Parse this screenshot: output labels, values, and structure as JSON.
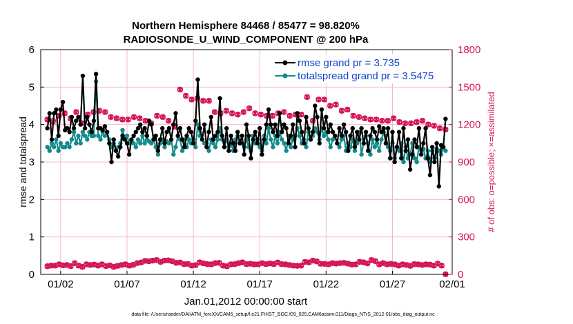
{
  "chart_data": {
    "type": "line",
    "title": [
      "Northern Hemisphere 84468 / 85477 = 98.820%",
      "RADIOSONDE_U_WIND_COMPONENT @ 200 hPa"
    ],
    "xlabel": "Jan.01,2012 00:00:00 start",
    "ylabel_left": "rmse and totalspread",
    "ylabel_right": "# of obs: o=possible; ×=assimilated",
    "footer": "data file: /Users/raeder/DAI/ATM_forcXX/CAM6_setup/f.e21.FHIST_BGC.f09_025.CAM6assim.011/Diags_NTrS_2012-01/obs_diag_output.nc",
    "ylim_left": [
      0,
      6
    ],
    "ylim_right": [
      0,
      1800
    ],
    "xlim": [
      0.5,
      31.5
    ],
    "yticks_left": [
      "0",
      "1",
      "2",
      "3",
      "4",
      "5",
      "6"
    ],
    "yticks_right": [
      "0",
      "300",
      "600",
      "900",
      "1200",
      "1500",
      "1800"
    ],
    "xticks": [
      {
        "x": 2,
        "label": "01/02"
      },
      {
        "x": 7,
        "label": "01/07"
      },
      {
        "x": 12,
        "label": "01/12"
      },
      {
        "x": 17,
        "label": "01/17"
      },
      {
        "x": 22,
        "label": "01/22"
      },
      {
        "x": 27,
        "label": "01/27"
      },
      {
        "x": 32,
        "label": "02/01"
      }
    ],
    "colors": {
      "rmse": "#000000",
      "spread": "#138a8a",
      "obs": "#d4145a",
      "legend_text": "#1144cc"
    },
    "series": [
      {
        "name": "rmse grand pr = 3.735",
        "axis": "left",
        "values": [
          3.9,
          4.3,
          3.6,
          4.3,
          4.4,
          3.7,
          4.4,
          4.6,
          3.85,
          3.9,
          3.8,
          4.2,
          3.9,
          4.1,
          4.2,
          4.0,
          5.3,
          3.9,
          4.2,
          4.0,
          3.8,
          4.1,
          5.35,
          3.9,
          3.9,
          3.85,
          3.95,
          3.8,
          3.5,
          3.0,
          3.6,
          3.3,
          3.15,
          3.4,
          3.7,
          3.6,
          3.5,
          3.2,
          3.6,
          3.7,
          3.8,
          3.9,
          4.0,
          3.8,
          3.9,
          3.7,
          4.1,
          4.0,
          3.6,
          3.7,
          3.3,
          3.6,
          3.9,
          3.5,
          3.8,
          3.9,
          3.6,
          4.0,
          4.3,
          3.7,
          3.9,
          3.6,
          3.4,
          3.7,
          3.9,
          3.8,
          3.5,
          4.1,
          5.2,
          3.9,
          3.6,
          4.0,
          3.4,
          3.8,
          4.2,
          3.6,
          3.7,
          3.8,
          4.7,
          3.7,
          3.4,
          3.9,
          3.3,
          3.7,
          3.5,
          3.3,
          3.8,
          3.5,
          3.7,
          3.2,
          4.0,
          3.7,
          3.1,
          3.6,
          3.8,
          3.5,
          3.9,
          3.2,
          3.6,
          4.0,
          4.4,
          4.0,
          3.8,
          4.0,
          3.7,
          4.3,
          3.8,
          4.0,
          3.9,
          3.5,
          3.7,
          4.0,
          3.4,
          4.3,
          4.1,
          3.8,
          3.5,
          4.2,
          3.9,
          3.6,
          3.8,
          4.5,
          4.2,
          3.5,
          4.4,
          3.9,
          4.2,
          3.8,
          4.0,
          3.8,
          3.7,
          3.5,
          3.9,
          3.7,
          4.0,
          3.8,
          3.3,
          3.7,
          3.9,
          3.4,
          3.8,
          3.6,
          3.9,
          3.5,
          3.8,
          3.3,
          3.7,
          3.9,
          3.8,
          3.6,
          3.95,
          3.8,
          3.9,
          3.5,
          3.9,
          3.1,
          3.8,
          3.0,
          3.4,
          3.8,
          3.1,
          3.9,
          3.3,
          3.6,
          2.8,
          3.2,
          3.6,
          3.4,
          3.9,
          3.2,
          3.5,
          3.9,
          3.1,
          2.65,
          3.4,
          3.0,
          3.5,
          2.35,
          3.45,
          3.4,
          4.15
        ]
      },
      {
        "name": "totalspread grand pr = 3.5475",
        "axis": "left",
        "values": [
          3.4,
          3.3,
          3.5,
          3.4,
          3.6,
          3.3,
          3.5,
          3.4,
          3.4,
          3.5,
          3.4,
          3.6,
          3.8,
          3.5,
          3.7,
          3.5,
          3.8,
          3.7,
          3.6,
          3.8,
          3.7,
          3.7,
          5.15,
          3.7,
          3.6,
          3.8,
          3.7,
          3.8,
          3.6,
          3.4,
          3.5,
          3.3,
          3.4,
          3.5,
          3.85,
          3.6,
          3.7,
          3.5,
          3.6,
          3.5,
          3.4,
          3.6,
          3.5,
          3.7,
          3.5,
          3.6,
          3.55,
          3.5,
          3.6,
          3.4,
          3.2,
          3.5,
          3.6,
          3.4,
          3.55,
          3.5,
          3.6,
          3.2,
          3.4,
          3.7,
          3.6,
          3.3,
          3.6,
          3.4,
          3.6,
          3.5,
          3.6,
          3.4,
          4.0,
          3.7,
          3.6,
          3.5,
          3.5,
          3.3,
          3.6,
          3.5,
          3.4,
          3.6,
          3.9,
          3.6,
          3.4,
          3.6,
          3.4,
          3.5,
          3.3,
          3.6,
          3.7,
          3.5,
          3.5,
          3.4,
          3.6,
          3.4,
          3.3,
          3.7,
          3.5,
          3.6,
          3.4,
          3.3,
          3.7,
          3.5,
          3.9,
          3.6,
          3.4,
          3.7,
          3.5,
          3.8,
          3.6,
          3.5,
          3.3,
          3.7,
          3.4,
          3.6,
          3.7,
          3.9,
          3.7,
          3.5,
          3.6,
          3.4,
          3.8,
          3.6,
          3.7,
          3.9,
          3.8,
          3.6,
          3.9,
          3.7,
          3.8,
          3.6,
          3.4,
          3.6,
          3.7,
          3.5,
          3.4,
          3.6,
          3.7,
          3.3,
          3.5,
          3.4,
          3.6,
          3.3,
          3.5,
          3.8,
          3.2,
          3.5,
          3.7,
          3.5,
          3.2,
          3.6,
          3.4,
          3.5,
          3.3,
          3.6,
          3.8,
          3.7,
          3.4,
          3.3,
          3.5,
          3.1,
          3.4,
          3.3,
          3.5,
          3.0,
          3.4,
          3.1,
          3.2,
          3.5,
          3.1,
          3.0,
          3.4,
          3.2,
          3.35,
          3.1,
          3.3,
          3.0,
          3.3,
          3.1,
          3.35,
          3.3,
          3.2,
          3.4,
          3.3
        ]
      },
      {
        "name": "possible",
        "axis": "right",
        "marker": "circle",
        "values": [
          1240,
          1230,
          1270,
          1290,
          1250,
          1300,
          1210,
          1280,
          1300,
          1310,
          1300,
          1260,
          1250,
          1240,
          1240,
          1260,
          1250,
          1230,
          1210,
          1270,
          1260,
          1230,
          1190,
          1480,
          1430,
          1400,
          1410,
          1390,
          1390,
          1300,
          1290,
          1310,
          1290,
          1280,
          1300,
          1330,
          1290,
          1280,
          1270,
          1270,
          1290,
          1300,
          1270,
          1280,
          1280,
          1420,
          1230,
          1400,
          1400,
          1350,
          1360,
          1310,
          1320,
          1270,
          1260,
          1250,
          1240,
          1240,
          1230,
          1230,
          1250,
          1220,
          1210,
          1210,
          1220,
          1230,
          1200,
          1190,
          1170,
          1160
        ]
      },
      {
        "name": "assimilated",
        "axis": "right",
        "marker": "x",
        "values": [
          1240,
          1220,
          1270,
          1290,
          1250,
          1300,
          1210,
          1280,
          1300,
          1310,
          1300,
          1260,
          1250,
          1240,
          1240,
          1260,
          1250,
          1230,
          1210,
          1270,
          1260,
          1230,
          1180,
          1480,
          1430,
          1400,
          1410,
          1390,
          1390,
          1300,
          1290,
          1310,
          1290,
          1280,
          1300,
          1330,
          1290,
          1280,
          1270,
          1270,
          1290,
          1300,
          1270,
          1280,
          1280,
          1420,
          1230,
          1400,
          1400,
          1350,
          1360,
          1310,
          1320,
          1270,
          1260,
          1250,
          1240,
          1240,
          1230,
          1230,
          1250,
          1220,
          1210,
          1210,
          1220,
          1230,
          1200,
          1190,
          1170,
          1160
        ]
      },
      {
        "name": "possible_low",
        "axis": "right",
        "marker": "circle",
        "values": [
          65,
          70,
          70,
          80,
          72,
          75,
          66,
          90,
          70,
          60,
          80,
          75,
          78,
          70,
          80,
          66,
          72,
          60,
          68,
          75,
          80,
          70,
          76,
          90,
          95,
          108,
          105,
          110,
          115,
          100,
          110,
          112,
          105,
          92,
          95,
          82,
          84,
          70,
          74,
          96,
          88,
          82,
          80,
          90,
          92,
          70,
          65,
          80,
          82,
          90,
          96,
          82,
          85,
          80,
          80,
          90,
          82,
          88,
          82,
          95,
          82,
          80,
          75,
          70,
          68,
          70,
          100,
          96,
          110,
          104,
          85,
          84,
          80,
          90,
          86,
          90,
          92,
          86,
          78,
          80,
          100,
          96,
          88,
          115,
          106,
          80,
          90,
          80,
          84,
          80,
          70,
          80,
          75,
          68,
          82,
          80,
          75,
          80,
          78,
          70,
          86,
          70,
          1
        ]
      },
      {
        "name": "assimilated_low",
        "axis": "right",
        "marker": "x",
        "values": [
          65,
          70,
          70,
          80,
          72,
          75,
          66,
          90,
          70,
          60,
          80,
          75,
          78,
          70,
          80,
          66,
          72,
          60,
          68,
          75,
          80,
          70,
          76,
          90,
          95,
          108,
          105,
          110,
          115,
          100,
          110,
          112,
          105,
          92,
          95,
          82,
          84,
          70,
          74,
          96,
          88,
          82,
          80,
          90,
          92,
          70,
          65,
          80,
          82,
          90,
          96,
          82,
          85,
          80,
          80,
          90,
          82,
          88,
          82,
          95,
          82,
          80,
          75,
          70,
          68,
          70,
          100,
          96,
          110,
          104,
          85,
          84,
          80,
          90,
          86,
          90,
          92,
          86,
          78,
          80,
          100,
          96,
          88,
          115,
          106,
          80,
          90,
          80,
          84,
          80,
          70,
          80,
          75,
          68,
          82,
          80,
          75,
          80,
          78,
          70,
          86,
          70,
          1
        ]
      }
    ],
    "legend": [
      {
        "label": "rmse grand pr = 3.735",
        "color": "#000000"
      },
      {
        "label": "totalspread grand pr = 3.5475",
        "color": "#138a8a"
      }
    ]
  }
}
